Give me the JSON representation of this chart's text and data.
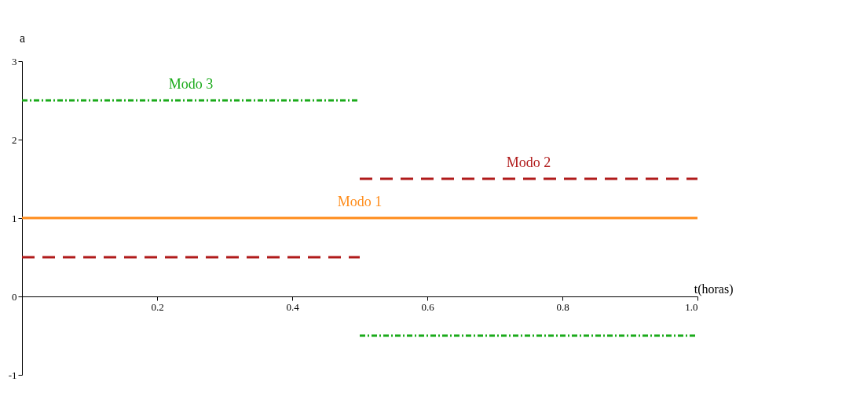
{
  "chart_data": {
    "type": "line",
    "xlabel": "t(horas)",
    "ylabel": "a",
    "xlim": [
      0,
      1
    ],
    "xticks": [
      0.2,
      0.4,
      0.6,
      0.8,
      {
        "value": 1,
        "label": "1.0"
      }
    ],
    "ylim": [
      -1,
      3
    ],
    "yticks": [
      -1,
      0,
      1,
      2,
      3
    ],
    "grid": false,
    "series": [
      {
        "name": "Modo 1",
        "color": "#ff8c1a",
        "line_style": "solid",
        "x": [
          0,
          1
        ],
        "values": [
          1,
          1
        ]
      },
      {
        "name": "Modo 2",
        "color": "#b01a1a",
        "line_style": "dashed",
        "x": [
          0,
          0.5,
          null,
          0.5,
          1
        ],
        "values": [
          0.5,
          0.5,
          null,
          1.5,
          1.5
        ]
      },
      {
        "name": "Modo 3",
        "color": "#1aaa1a",
        "line_style": "dotted",
        "x": [
          0,
          0.5,
          null,
          0.5,
          1
        ],
        "values": [
          2.5,
          2.5,
          null,
          -0.5,
          -0.5
        ]
      }
    ]
  }
}
